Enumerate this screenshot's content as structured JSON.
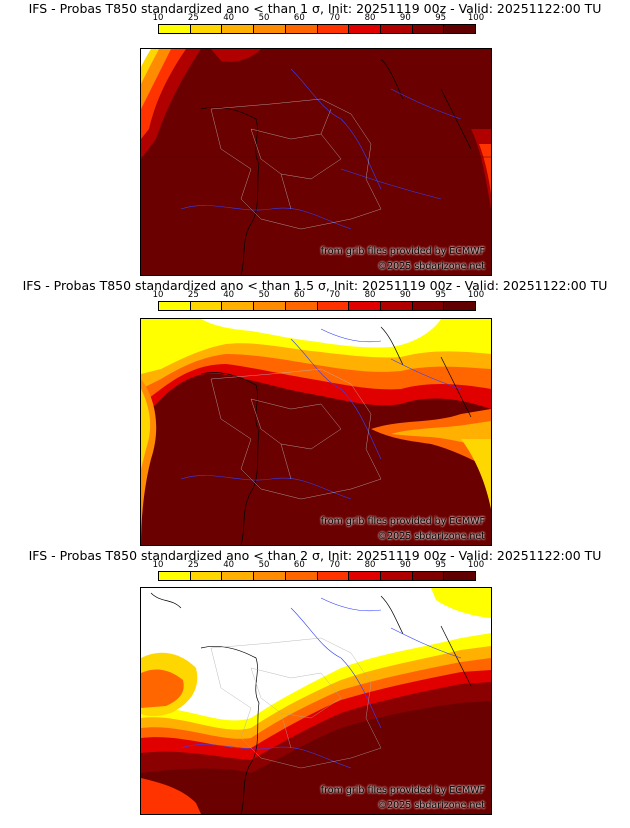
{
  "scale": {
    "labels": [
      "10",
      "25",
      "40",
      "50",
      "60",
      "70",
      "80",
      "90",
      "95",
      "100"
    ],
    "colors": [
      "#ffff00",
      "#ffd700",
      "#ffb000",
      "#ff8c00",
      "#ff6600",
      "#ff3300",
      "#e00000",
      "#b00000",
      "#800000",
      "#600000"
    ]
  },
  "panels": [
    {
      "title": "IFS - Probas T850  standardized ano < than 1 σ, Init: 20251119 00z - Valid: 20251122:00 TU",
      "credit_source": "from grib files provided by ECMWF",
      "credit_site": "©2025 sbdarizone.net",
      "threshold_sigma": 1
    },
    {
      "title": "IFS - Probas T850  standardized ano < than 1.5 σ, Init: 20251119 00z - Valid: 20251122:00 TU",
      "credit_source": "from grib files provided by ECMWF",
      "credit_site": "©2025 sbdarizone.net",
      "threshold_sigma": 1.5
    },
    {
      "title": "IFS - Probas T850  standardized ano < than 2 σ, Init: 20251119 00z - Valid: 20251122:00 TU",
      "credit_source": "from grib files provided by ECMWF",
      "credit_site": "©2025 sbdarizone.net",
      "threshold_sigma": 2
    }
  ]
}
